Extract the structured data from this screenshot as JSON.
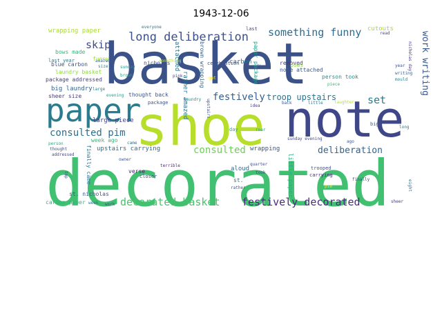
{
  "title": "1943-12-06",
  "words": [
    {
      "text": "basket",
      "color": "#3b5288"
    },
    {
      "text": "decorated",
      "color": "#42c071"
    },
    {
      "text": "shoe",
      "color": "#b6de2b"
    },
    {
      "text": "note",
      "color": "#3f4788"
    },
    {
      "text": "paper",
      "color": "#2a7b8e"
    },
    {
      "text": "long deliberation",
      "color": "#3c5088"
    },
    {
      "text": "something funny",
      "color": "#2f6b8e"
    },
    {
      "text": "skip",
      "color": "#3e4a89"
    },
    {
      "text": "festively",
      "color": "#355f8d"
    },
    {
      "text": "troop upstairs",
      "color": "#2d718e"
    },
    {
      "text": "set",
      "color": "#297b8e"
    },
    {
      "text": "work writing",
      "color": "#38588c"
    },
    {
      "text": "consulted pim",
      "color": "#2e6e8e"
    },
    {
      "text": "consulted",
      "color": "#6ece58"
    },
    {
      "text": "deliberation",
      "color": "#33628d"
    },
    {
      "text": "decorated basket",
      "color": "#4ac16d"
    },
    {
      "text": "festively decorated",
      "color": "#482979"
    },
    {
      "text": "wrapping paper",
      "color": "#a8db34"
    },
    {
      "text": "last",
      "color": "#404688"
    },
    {
      "text": "cutouts",
      "color": "#a5db36"
    },
    {
      "text": "read",
      "color": "#3f4788"
    },
    {
      "text": "everyone",
      "color": "#2c728e"
    },
    {
      "text": "bows made",
      "color": "#35b779"
    },
    {
      "text": "amazed",
      "color": "#31688e"
    },
    {
      "text": "nicholas",
      "color": "#3e4c8a"
    },
    {
      "text": "celebration",
      "color": "#3d4e8a"
    },
    {
      "text": "gift",
      "color": "#3b528b"
    },
    {
      "text": "last year",
      "color": "#2b758e"
    },
    {
      "text": "size",
      "color": "#287d8e"
    },
    {
      "text": "blue carbon",
      "color": "#3b528b"
    },
    {
      "text": "funny",
      "color": "#a0da39"
    },
    {
      "text": "sunday",
      "color": "#21918c"
    },
    {
      "text": "attached",
      "color": "#2a768e"
    },
    {
      "text": "something",
      "color": "#bddf26"
    },
    {
      "text": "brown wrapping",
      "color": "#32648e"
    },
    {
      "text": "removed",
      "color": "#453781"
    },
    {
      "text": "note attached",
      "color": "#39568c"
    },
    {
      "text": "carbon",
      "color": "#2c728e"
    },
    {
      "text": "paper package",
      "color": "#1f9e89"
    },
    {
      "text": "bows",
      "color": "#93d741"
    },
    {
      "text": "year",
      "color": "#3b528b"
    },
    {
      "text": "writing",
      "color": "#35608d"
    },
    {
      "text": "mould",
      "color": "#277f8e"
    },
    {
      "text": "nicholas day",
      "color": "#46327e"
    },
    {
      "text": "laundry basket",
      "color": "#90d743"
    },
    {
      "text": "brown",
      "color": "#20a386"
    },
    {
      "text": "pink",
      "color": "#3e4989"
    },
    {
      "text": "got",
      "color": "#fde725"
    },
    {
      "text": "package addressed",
      "color": "#433e85"
    },
    {
      "text": "person took",
      "color": "#21918c"
    },
    {
      "text": "big laundry",
      "color": "#32648e"
    },
    {
      "text": "large",
      "color": "#26828e"
    },
    {
      "text": "piece",
      "color": "#35b779"
    },
    {
      "text": "sheer size",
      "color": "#453882"
    },
    {
      "text": "evening",
      "color": "#1f9a8a"
    },
    {
      "text": "thought back",
      "color": "#3a548c"
    },
    {
      "text": "back",
      "color": "#3b528b"
    },
    {
      "text": "little",
      "color": "#2c728e"
    },
    {
      "text": "laughter",
      "color": "#b5de2b"
    },
    {
      "text": "package",
      "color": "#3b528b"
    },
    {
      "text": "laundry",
      "color": "#21918c"
    },
    {
      "text": "idea",
      "color": "#443a83"
    },
    {
      "text": "large piece",
      "color": "#424086"
    },
    {
      "text": "rather amazed",
      "color": "#2c728e"
    },
    {
      "text": "upstairs",
      "color": "#3e4a89"
    },
    {
      "text": "day",
      "color": "#22a785"
    },
    {
      "text": "roar",
      "color": "#1fa088"
    },
    {
      "text": "sunday evening",
      "color": "#414487"
    },
    {
      "text": "ago",
      "color": "#3b528b"
    },
    {
      "text": "big",
      "color": "#38598c"
    },
    {
      "text": "long",
      "color": "#2a788e"
    },
    {
      "text": "person",
      "color": "#22a785"
    },
    {
      "text": "week ago",
      "color": "#35b779"
    },
    {
      "text": "came",
      "color": "#2c728e"
    },
    {
      "text": "thought",
      "color": "#3e4c8a"
    },
    {
      "text": "upstairs carrying",
      "color": "#306a8e"
    },
    {
      "text": "wrapping",
      "color": "#3a548c"
    },
    {
      "text": "addressed",
      "color": "#404588"
    },
    {
      "text": "finally came",
      "color": "#2d708e"
    },
    {
      "text": "owner",
      "color": "#3a538b"
    },
    {
      "text": "quarter",
      "color": "#3e4c8a"
    },
    {
      "text": "trooped",
      "color": "#3b528b"
    },
    {
      "text": "carrying",
      "color": "#472d7b"
    },
    {
      "text": "finally",
      "color": "#3f4889"
    },
    {
      "text": "eight",
      "color": "#2f6b8e"
    },
    {
      "text": "aloud",
      "color": "#31688e"
    },
    {
      "text": "little paper",
      "color": "#28ae80"
    },
    {
      "text": "top",
      "color": "#3d4e8a"
    },
    {
      "text": "terrible",
      "color": "#482374"
    },
    {
      "text": "closer",
      "color": "#3e4989"
    },
    {
      "text": "verse",
      "color": "#481c6e"
    },
    {
      "text": "st.",
      "color": "#2e6f8e"
    },
    {
      "text": "rather",
      "color": "#3b528b"
    },
    {
      "text": "pie",
      "color": "#fde725"
    },
    {
      "text": "st. nicholas",
      "color": "#38598c"
    },
    {
      "text": "carbon paper",
      "color": "#31b57b"
    },
    {
      "text": "week",
      "color": "#2c728e"
    },
    {
      "text": "work",
      "color": "#3e4989"
    },
    {
      "text": "sheer",
      "color": "#453781"
    },
    {
      "text": "took",
      "color": "#3f4788"
    }
  ]
}
